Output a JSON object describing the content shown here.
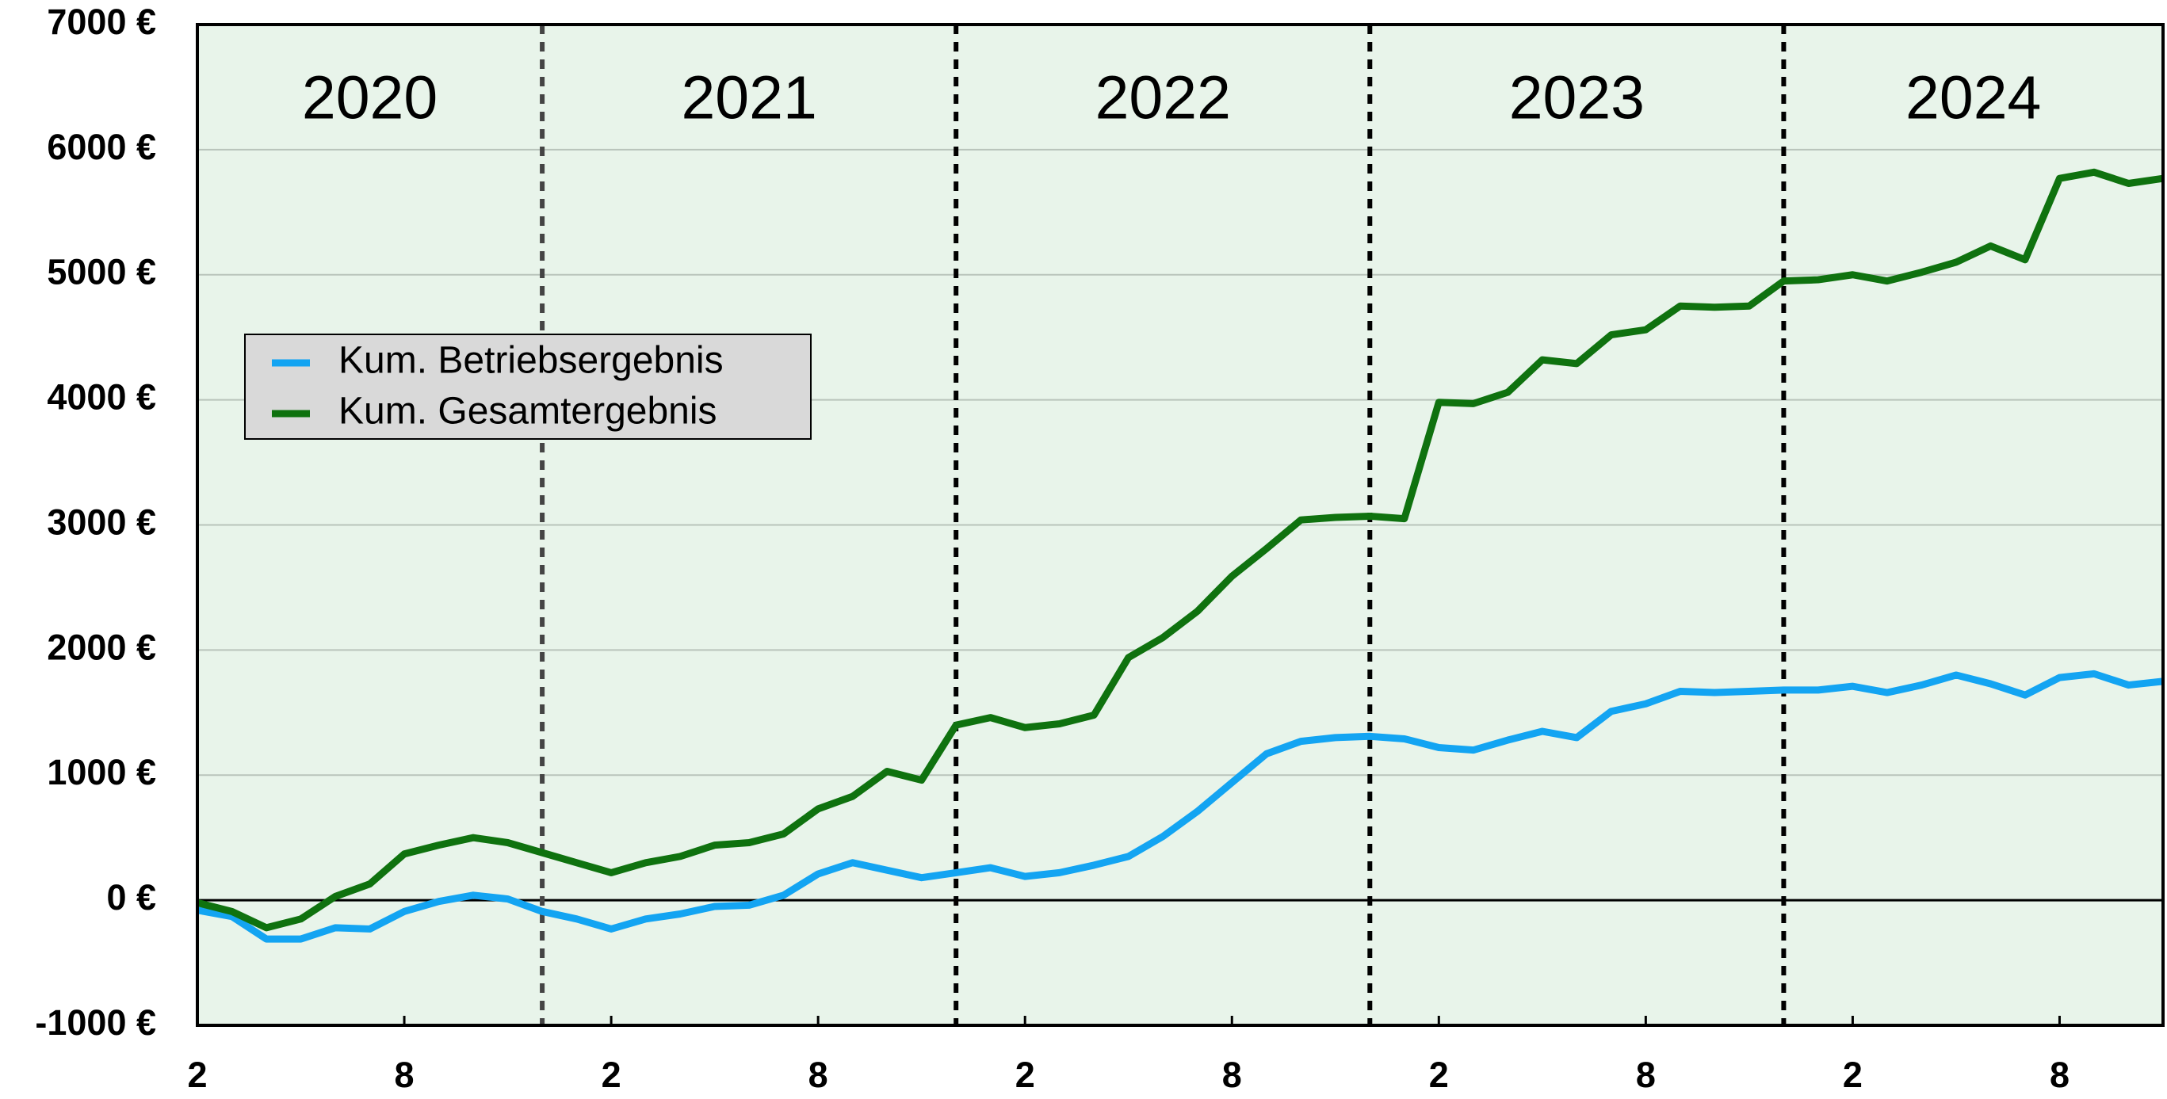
{
  "chart_data": {
    "type": "line",
    "x": [
      0,
      1,
      2,
      3,
      4,
      5,
      6,
      7,
      8,
      9,
      10,
      11,
      12,
      13,
      14,
      15,
      16,
      17,
      18,
      19,
      20,
      21,
      22,
      23,
      24,
      25,
      26,
      27,
      28,
      29,
      30,
      31,
      32,
      33,
      34,
      35,
      36,
      37,
      38,
      39,
      40,
      41,
      42,
      43,
      44,
      45,
      46,
      47,
      48,
      49,
      50,
      51,
      52,
      53,
      54,
      55,
      56,
      57
    ],
    "series": [
      {
        "name": "Kum. Betriebsergebnis",
        "color": "#13a4f2",
        "values": [
          -80,
          -130,
          -310,
          -310,
          -220,
          -230,
          -90,
          -10,
          40,
          10,
          -90,
          -150,
          -230,
          -150,
          -110,
          -50,
          -40,
          40,
          210,
          300,
          240,
          180,
          220,
          260,
          190,
          220,
          280,
          350,
          510,
          710,
          940,
          1170,
          1270,
          1300,
          1310,
          1290,
          1220,
          1200,
          1280,
          1350,
          1300,
          1510,
          1570,
          1670,
          1660,
          1670,
          1680,
          1680,
          1710,
          1660,
          1720,
          1800,
          1730,
          1640,
          1780,
          1810,
          1720,
          1750
        ]
      },
      {
        "name": "Kum. Gesamtergebnis",
        "color": "#0f720f",
        "values": [
          -20,
          -90,
          -220,
          -150,
          30,
          130,
          370,
          440,
          500,
          460,
          380,
          300,
          220,
          300,
          350,
          440,
          460,
          530,
          730,
          830,
          1030,
          960,
          1400,
          1460,
          1380,
          1410,
          1480,
          1940,
          2100,
          2310,
          2590,
          2810,
          3040,
          3060,
          3070,
          3050,
          3980,
          3970,
          4060,
          4320,
          4290,
          4520,
          4560,
          4750,
          4740,
          4750,
          4950,
          4960,
          5000,
          4950,
          5020,
          5100,
          5230,
          5120,
          5770,
          5820,
          5730,
          5770
        ]
      }
    ],
    "xlim": [
      0,
      57
    ],
    "xticks": [
      {
        "value": 0,
        "label": "2"
      },
      {
        "value": 6,
        "label": "8"
      },
      {
        "value": 12,
        "label": "2"
      },
      {
        "value": 18,
        "label": "8"
      },
      {
        "value": 24,
        "label": "2"
      },
      {
        "value": 30,
        "label": "8"
      },
      {
        "value": 36,
        "label": "2"
      },
      {
        "value": 42,
        "label": "8"
      },
      {
        "value": 48,
        "label": "2"
      },
      {
        "value": 54,
        "label": "8"
      }
    ],
    "ylim": [
      -1000,
      7000
    ],
    "yticks": [
      {
        "value": -1000,
        "label": "-1000 €"
      },
      {
        "value": 0,
        "label": "0 €"
      },
      {
        "value": 1000,
        "label": "1000 €"
      },
      {
        "value": 2000,
        "label": "2000 €"
      },
      {
        "value": 3000,
        "label": "3000 €"
      },
      {
        "value": 4000,
        "label": "4000 €"
      },
      {
        "value": 5000,
        "label": "5000 €"
      },
      {
        "value": 6000,
        "label": "6000 €"
      },
      {
        "value": 7000,
        "label": "7000 €"
      }
    ],
    "grid": true,
    "legend": "upper left",
    "year_bands": [
      {
        "label": "2020",
        "start": 0,
        "end": 10
      },
      {
        "label": "2021",
        "start": 10,
        "end": 22
      },
      {
        "label": "2022",
        "start": 22,
        "end": 34
      },
      {
        "label": "2023",
        "start": 34,
        "end": 46
      },
      {
        "label": "2024",
        "start": 46,
        "end": 57
      }
    ]
  }
}
